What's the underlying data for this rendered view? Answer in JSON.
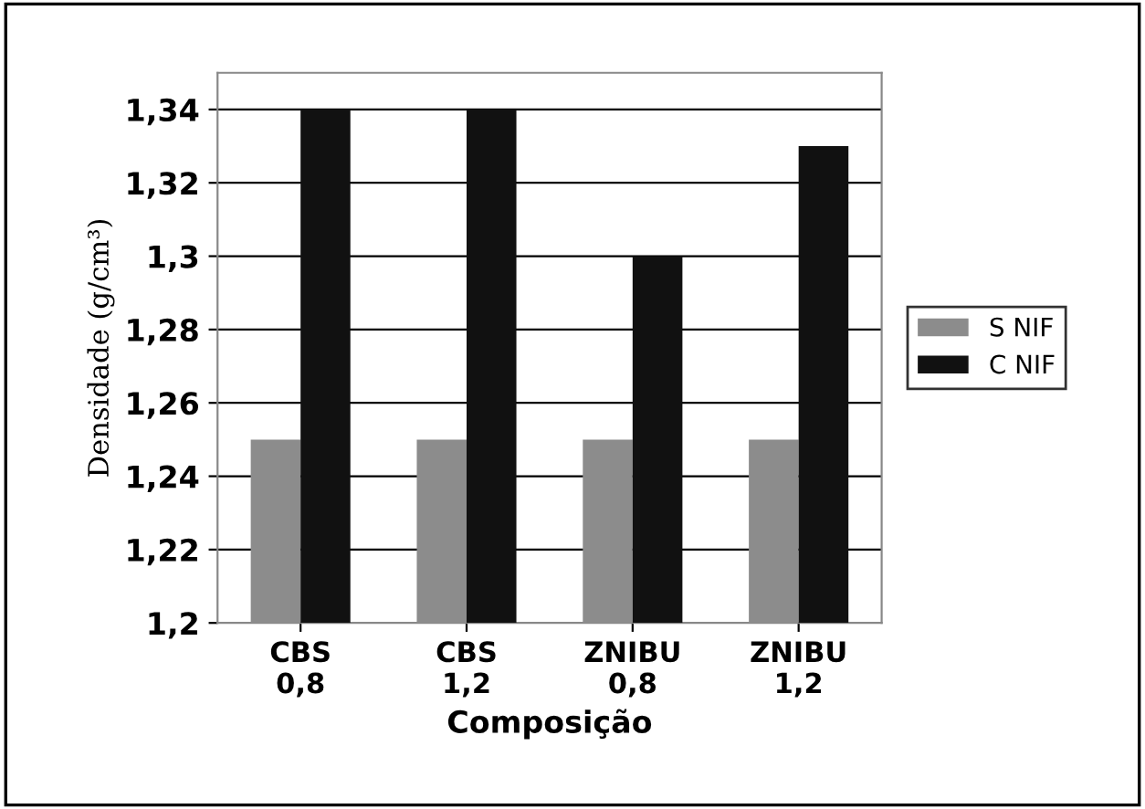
{
  "chart_data": {
    "type": "bar",
    "xlabel": "Composição",
    "ylabel": "Densidade (g/cm³)",
    "categories": [
      "CBS\n0,8",
      "CBS\n1,2",
      "ZNIBU\n0,8",
      "ZNIBU\n1,2"
    ],
    "series": [
      {
        "name": "S NIF",
        "color": "#8c8c8c",
        "values": [
          1.25,
          1.25,
          1.25,
          1.25
        ]
      },
      {
        "name": "C NIF",
        "color": "#111111",
        "values": [
          1.34,
          1.34,
          1.3,
          1.33
        ]
      }
    ],
    "ylim": [
      1.2,
      1.35
    ],
    "yticks": [
      {
        "value": 1.2,
        "label": "1,2"
      },
      {
        "value": 1.22,
        "label": "1,22"
      },
      {
        "value": 1.24,
        "label": "1,24"
      },
      {
        "value": 1.26,
        "label": "1,26"
      },
      {
        "value": 1.28,
        "label": "1,28"
      },
      {
        "value": 1.3,
        "label": "1,3"
      },
      {
        "value": 1.32,
        "label": "1,32"
      },
      {
        "value": 1.34,
        "label": "1,34"
      }
    ],
    "grid": "y",
    "legend": "right"
  }
}
